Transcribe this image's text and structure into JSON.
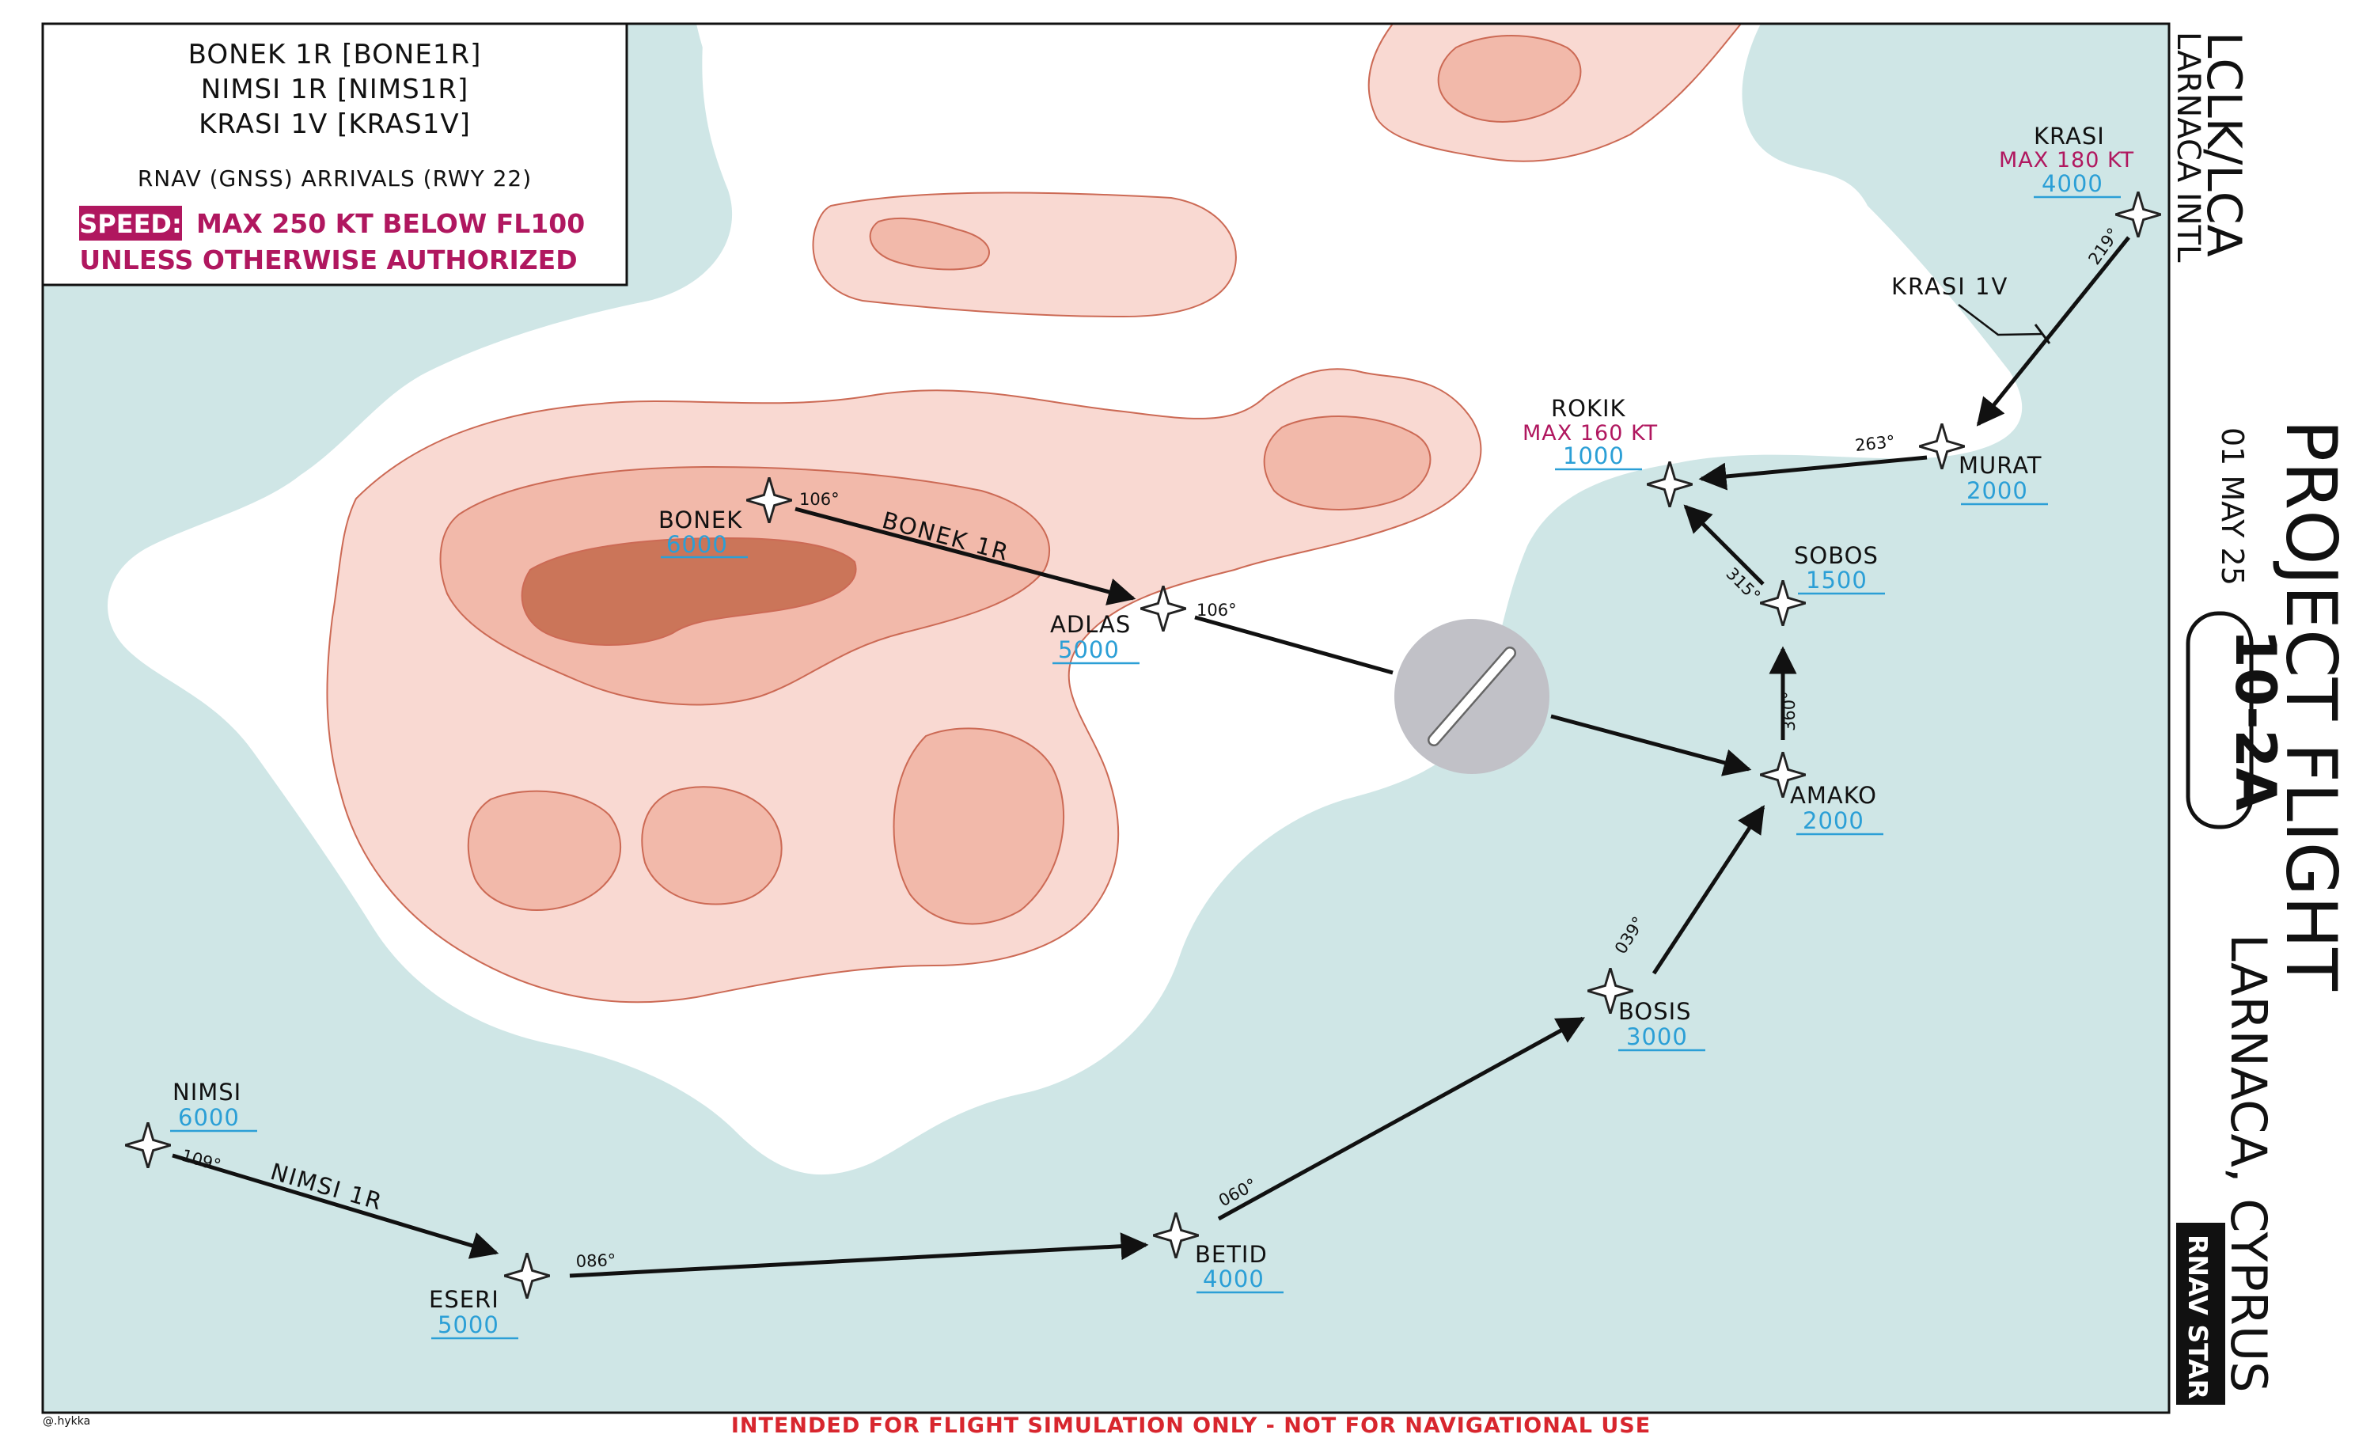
{
  "legend": {
    "procedures": [
      "BONEK 1R [BONE1R]",
      "NIMSI 1R [NIMS1R]",
      "KRASI 1V [KRAS1V]"
    ],
    "type": "RNAV (GNSS) ARRIVALS (RWY 22)",
    "speed_label": "SPEED:",
    "speed_text": "MAX 250 KT BELOW FL100",
    "speed_text2": "UNLESS OTHERWISE AUTHORIZED"
  },
  "header": {
    "icao": "LCLK/LCA",
    "airport": "LARNACA INTL",
    "date": "01 MAY 25",
    "chart_number": "10-2A",
    "title": "PROJECT FLIGHT",
    "city": "LARNACA, CYPRUS",
    "badge": "RNAV STAR"
  },
  "waypoints": {
    "bonek": {
      "name": "BONEK",
      "alt": "6000"
    },
    "adlas": {
      "name": "ADLAS",
      "alt": "5000"
    },
    "krasi": {
      "name": "KRASI",
      "alt": "4000",
      "speed": "MAX 180 KT"
    },
    "rokik": {
      "name": "ROKIK",
      "alt": "1000",
      "speed": "MAX 160 KT"
    },
    "murat": {
      "name": "MURAT",
      "alt": "2000"
    },
    "sobos": {
      "name": "SOBOS",
      "alt": "1500"
    },
    "amako": {
      "name": "AMAKO",
      "alt": "2000"
    },
    "bosis": {
      "name": "BOSIS",
      "alt": "3000"
    },
    "betid": {
      "name": "BETID",
      "alt": "4000"
    },
    "eseri": {
      "name": "ESERI",
      "alt": "5000"
    },
    "nimsi": {
      "name": "NIMSI",
      "alt": "6000"
    }
  },
  "routes": {
    "bonek_1r": "BONEK 1R",
    "nimsi_1r": "NIMSI 1R",
    "krasi_1v": "KRASI 1V"
  },
  "courses": {
    "bonek_adlas": "106°",
    "adlas_airport": "106°",
    "krasi_murat": "219°",
    "murat_rokik": "263°",
    "sobos_rokik": "315°",
    "amako_sobos": "360°",
    "bosis_amako": "039°",
    "betid_bosis": "060°",
    "eseri_betid": "086°",
    "nimsi_eseri": "109°"
  },
  "footer": "INTENDED FOR FLIGHT SIMULATION ONLY - NOT FOR NAVIGATIONAL USE",
  "credit": "@.hykka",
  "colors": {
    "sea": "#cfe6e6",
    "land": "#ffffff",
    "terrain1": "#f9d9d2",
    "terrain2": "#f2b9aa",
    "terrain3": "#cb7559",
    "terrain_stroke": "#cc6a55",
    "altitude": "#2b9fd6",
    "speed": "#b0175f",
    "warning": "#d8262e"
  }
}
